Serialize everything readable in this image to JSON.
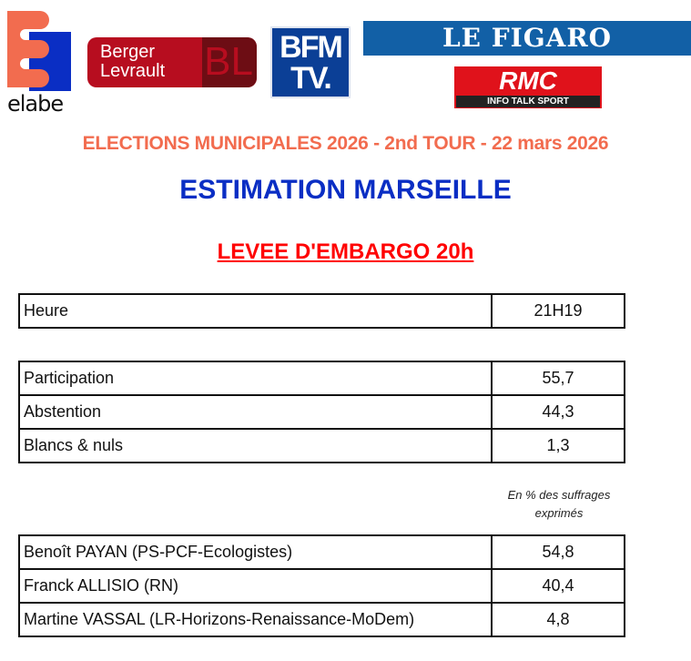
{
  "logos": {
    "elabe": "elabe",
    "berger_levrault": [
      "Berger",
      "Levrault"
    ],
    "berger_levrault_mark": "BL",
    "bfm": [
      "BFM",
      "TV."
    ],
    "figaro": "LE FIGARO",
    "rmc": "RMC",
    "rmc_tagline": "INFO TALK SPORT"
  },
  "colors": {
    "subtitle": "#f26c4f",
    "title": "#0a2ec4",
    "embargo": "#ff0000"
  },
  "header": {
    "subtitle": "ELECTIONS MUNICIPALES 2026 - 2nd TOUR - 22 mars 2026",
    "title": "ESTIMATION MARSEILLE",
    "embargo": "LEVEE D'EMBARGO 20h"
  },
  "time_table": {
    "label": "Heure",
    "value": "21H19"
  },
  "turnout": [
    {
      "label": "Participation",
      "value": "55,7"
    },
    {
      "label": "Abstention",
      "value": "44,3"
    },
    {
      "label": "Blancs & nuls",
      "value": "1,3"
    }
  ],
  "note": "En % des suffrages exprimés",
  "candidates": [
    {
      "label": "Benoît PAYAN (PS-PCF-Ecologistes)",
      "value": "54,8"
    },
    {
      "label": "Franck ALLISIO (RN)",
      "value": "40,4"
    },
    {
      "label": "Martine VASSAL (LR-Horizons-Renaissance-MoDem)",
      "value": "4,8"
    }
  ]
}
